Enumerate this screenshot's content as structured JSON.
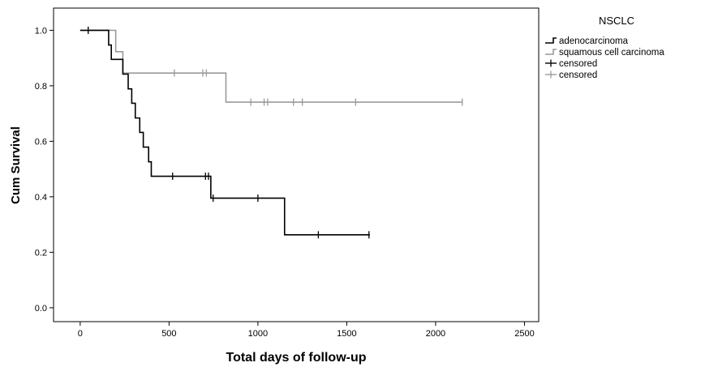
{
  "chart_data": {
    "type": "line",
    "title": "",
    "xlabel": "Total days of follow-up",
    "ylabel": "Cum Survival",
    "xlim": [
      -150,
      2580
    ],
    "ylim": [
      -0.05,
      1.08
    ],
    "xticks": [
      0,
      500,
      1000,
      1500,
      2000,
      2500
    ],
    "yticks": [
      0.0,
      0.2,
      0.4,
      0.6,
      0.8,
      1.0
    ],
    "xtick_labels": [
      "0",
      "500",
      "1000",
      "1500",
      "2000",
      "2500"
    ],
    "ytick_labels": [
      "0.0",
      "0.2",
      "0.4",
      "0.6",
      "0.8",
      "1.0"
    ],
    "grid": false,
    "legend": {
      "title": "NSCLC",
      "placement": "right",
      "entries": [
        {
          "label": "adenocarcinoma",
          "kind": "step",
          "color": "#000000"
        },
        {
          "label": "squamous cell carcinoma",
          "kind": "step",
          "color": "#9a9a9a"
        },
        {
          "label": "censored",
          "kind": "censor",
          "color": "#000000"
        },
        {
          "label": "censored",
          "kind": "censor",
          "color": "#9a9a9a"
        }
      ]
    },
    "series": [
      {
        "name": "adenocarcinoma",
        "color": "#000000",
        "steps": [
          [
            0,
            1.0
          ],
          [
            160,
            0.947
          ],
          [
            175,
            0.895
          ],
          [
            240,
            0.842
          ],
          [
            270,
            0.789
          ],
          [
            290,
            0.737
          ],
          [
            310,
            0.684
          ],
          [
            335,
            0.632
          ],
          [
            355,
            0.579
          ],
          [
            385,
            0.526
          ],
          [
            400,
            0.474
          ],
          [
            735,
            0.395
          ],
          [
            1150,
            0.263
          ]
        ],
        "end_x": 1630,
        "censored": [
          [
            45,
            1.0
          ],
          [
            520,
            0.474
          ],
          [
            705,
            0.474
          ],
          [
            722,
            0.474
          ],
          [
            748,
            0.395
          ],
          [
            1000,
            0.395
          ],
          [
            1340,
            0.263
          ],
          [
            1625,
            0.263
          ]
        ]
      },
      {
        "name": "squamous cell carcinoma",
        "color": "#9a9a9a",
        "steps": [
          [
            0,
            1.0
          ],
          [
            200,
            0.923
          ],
          [
            240,
            0.846
          ],
          [
            820,
            0.741
          ]
        ],
        "end_x": 2150,
        "censored": [
          [
            45,
            1.0
          ],
          [
            530,
            0.846
          ],
          [
            690,
            0.846
          ],
          [
            710,
            0.846
          ],
          [
            960,
            0.741
          ],
          [
            1035,
            0.741
          ],
          [
            1055,
            0.741
          ],
          [
            1200,
            0.741
          ],
          [
            1250,
            0.741
          ],
          [
            1550,
            0.741
          ],
          [
            2150,
            0.741
          ]
        ]
      }
    ]
  }
}
